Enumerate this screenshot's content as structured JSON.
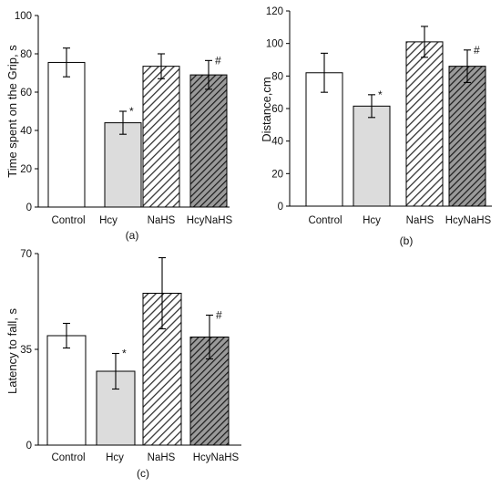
{
  "chart_data": [
    {
      "type": "bar",
      "panel_label": "(a)",
      "title": "",
      "xlabel": "",
      "ylabel": "Time spent on the Grip, s",
      "ylim": [
        0,
        100
      ],
      "yticks": [
        "0",
        "20",
        "40",
        "60",
        "80",
        "100"
      ],
      "categories": [
        "Control",
        "Hcy",
        "NaHS",
        "HcyNaHS"
      ],
      "values": [
        75.5,
        44,
        73.5,
        69
      ],
      "errors": [
        7.5,
        6,
        6.5,
        7.5
      ],
      "annotations": [
        "",
        "*",
        "",
        "#"
      ],
      "fills": [
        "white",
        "light-gray",
        "hatched",
        "dark-hatched"
      ]
    },
    {
      "type": "bar",
      "panel_label": "(b)",
      "title": "",
      "xlabel": "",
      "ylabel": "Distance,cm",
      "ylim": [
        0,
        120
      ],
      "yticks": [
        "0",
        "20",
        "40",
        "60",
        "80",
        "100",
        "120"
      ],
      "categories": [
        "Control",
        "Hcy",
        "NaHS",
        "HcyNaHS"
      ],
      "values": [
        82,
        61.5,
        101,
        86
      ],
      "errors": [
        12,
        7,
        9.5,
        10
      ],
      "annotations": [
        "",
        "*",
        "",
        "#"
      ],
      "fills": [
        "white",
        "light-gray",
        "hatched",
        "dark-hatched"
      ]
    },
    {
      "type": "bar",
      "panel_label": "(c)",
      "title": "",
      "xlabel": "",
      "ylabel": "Latency  to fall, s",
      "ylim": [
        0,
        70
      ],
      "yticks": [
        "0",
        "35",
        "70"
      ],
      "categories": [
        "Control",
        "Hcy",
        "NaHS",
        "HcyNaHS"
      ],
      "values": [
        40,
        27,
        55.5,
        39.5
      ],
      "errors": [
        4.5,
        6.5,
        13,
        8
      ],
      "annotations": [
        "",
        "*",
        "",
        "#"
      ],
      "fills": [
        "white",
        "light-gray",
        "hatched",
        "dark-hatched"
      ]
    }
  ],
  "colors": {
    "axis": "#000000",
    "white_bar": "#ffffff",
    "gray_bar": "#dcdcdc",
    "hatch_light_bg": "#ffffff",
    "hatch_light_line": "#333333",
    "hatch_dark_bg": "#9a9a9a",
    "hatch_dark_line": "#1a1a1a"
  }
}
